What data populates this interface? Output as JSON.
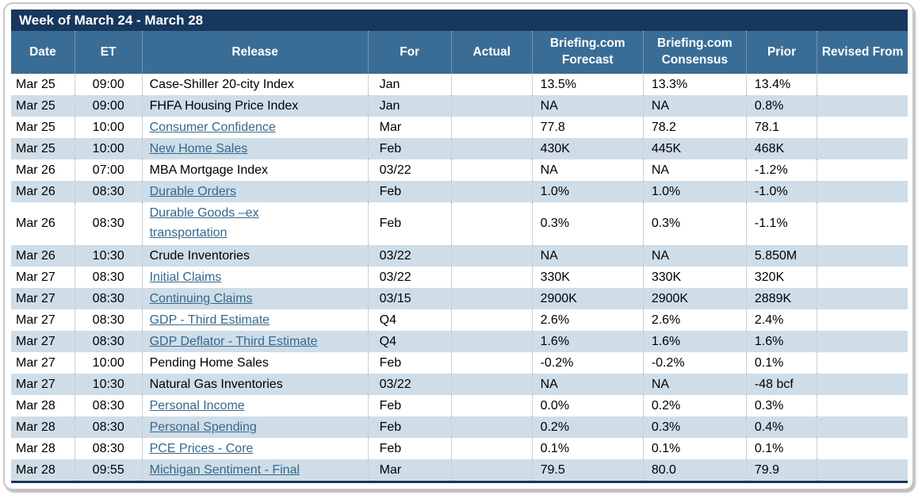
{
  "title": "Week of March 24 - March 28",
  "colors": {
    "title_bar": "#17375d",
    "header": "#3a6d96",
    "stripe_row": "#cfdde8",
    "link": "#36688c"
  },
  "columns": [
    {
      "key": "date",
      "label": "Date"
    },
    {
      "key": "et",
      "label": "ET"
    },
    {
      "key": "release",
      "label": "Release"
    },
    {
      "key": "for",
      "label": "For"
    },
    {
      "key": "actual",
      "label": "Actual"
    },
    {
      "key": "forecast",
      "label": "Briefing.com Forecast"
    },
    {
      "key": "consensus",
      "label": "Briefing.com Consensus"
    },
    {
      "key": "prior",
      "label": "Prior"
    },
    {
      "key": "revised",
      "label": "Revised From"
    }
  ],
  "rows": [
    {
      "date": "Mar 25",
      "et": "09:00",
      "release": "Case-Shiller 20-city Index",
      "link": false,
      "tall": false,
      "for": "Jan",
      "actual": "",
      "forecast": "13.5%",
      "consensus": "13.3%",
      "prior": "13.4%",
      "revised": ""
    },
    {
      "date": "Mar 25",
      "et": "09:00",
      "release": "FHFA Housing Price Index",
      "link": false,
      "tall": false,
      "for": "Jan",
      "actual": "",
      "forecast": "NA",
      "consensus": "NA",
      "prior": "0.8%",
      "revised": ""
    },
    {
      "date": "Mar 25",
      "et": "10:00",
      "release": "Consumer Confidence",
      "link": true,
      "tall": false,
      "for": "Mar",
      "actual": "",
      "forecast": "77.8",
      "consensus": "78.2",
      "prior": "78.1",
      "revised": ""
    },
    {
      "date": "Mar 25",
      "et": "10:00",
      "release": "New Home Sales",
      "link": true,
      "tall": false,
      "for": "Feb",
      "actual": "",
      "forecast": "430K",
      "consensus": "445K",
      "prior": "468K",
      "revised": ""
    },
    {
      "date": "Mar 26",
      "et": "07:00",
      "release": "MBA Mortgage Index",
      "link": false,
      "tall": false,
      "for": "03/22",
      "actual": "",
      "forecast": "NA",
      "consensus": "NA",
      "prior": "-1.2%",
      "revised": ""
    },
    {
      "date": "Mar 26",
      "et": "08:30",
      "release": "Durable Orders",
      "link": true,
      "tall": false,
      "for": "Feb",
      "actual": "",
      "forecast": "1.0%",
      "consensus": "1.0%",
      "prior": "-1.0%",
      "revised": ""
    },
    {
      "date": "Mar 26",
      "et": "08:30",
      "release": "Durable Goods –ex transportation",
      "link": true,
      "tall": true,
      "for": "Feb",
      "actual": "",
      "forecast": "0.3%",
      "consensus": "0.3%",
      "prior": "-1.1%",
      "revised": ""
    },
    {
      "date": "Mar 26",
      "et": "10:30",
      "release": "Crude Inventories",
      "link": false,
      "tall": false,
      "for": "03/22",
      "actual": "",
      "forecast": "NA",
      "consensus": "NA",
      "prior": "5.850M",
      "revised": ""
    },
    {
      "date": "Mar 27",
      "et": "08:30",
      "release": "Initial Claims",
      "link": true,
      "tall": false,
      "for": "03/22",
      "actual": "",
      "forecast": "330K",
      "consensus": "330K",
      "prior": "320K",
      "revised": ""
    },
    {
      "date": "Mar 27",
      "et": "08:30",
      "release": "Continuing Claims",
      "link": true,
      "tall": false,
      "for": "03/15",
      "actual": "",
      "forecast": "2900K",
      "consensus": "2900K",
      "prior": "2889K",
      "revised": ""
    },
    {
      "date": "Mar 27",
      "et": "08:30",
      "release": "GDP - Third Estimate",
      "link": true,
      "tall": false,
      "for": "Q4",
      "actual": "",
      "forecast": "2.6%",
      "consensus": "2.6%",
      "prior": "2.4%",
      "revised": ""
    },
    {
      "date": "Mar 27",
      "et": "08:30",
      "release": "GDP Deflator - Third Estimate",
      "link": true,
      "tall": false,
      "for": "Q4",
      "actual": "",
      "forecast": "1.6%",
      "consensus": "1.6%",
      "prior": "1.6%",
      "revised": ""
    },
    {
      "date": "Mar 27",
      "et": "10:00",
      "release": "Pending Home Sales",
      "link": false,
      "tall": false,
      "for": "Feb",
      "actual": "",
      "forecast": "-0.2%",
      "consensus": "-0.2%",
      "prior": "0.1%",
      "revised": ""
    },
    {
      "date": "Mar 27",
      "et": "10:30",
      "release": "Natural Gas Inventories",
      "link": false,
      "tall": false,
      "for": "03/22",
      "actual": "",
      "forecast": "NA",
      "consensus": "NA",
      "prior": "-48 bcf",
      "revised": ""
    },
    {
      "date": "Mar 28",
      "et": "08:30",
      "release": "Personal Income",
      "link": true,
      "tall": false,
      "for": "Feb",
      "actual": "",
      "forecast": "0.0%",
      "consensus": "0.2%",
      "prior": "0.3%",
      "revised": ""
    },
    {
      "date": "Mar 28",
      "et": "08:30",
      "release": "Personal Spending",
      "link": true,
      "tall": false,
      "for": "Feb",
      "actual": "",
      "forecast": "0.2%",
      "consensus": "0.3%",
      "prior": "0.4%",
      "revised": ""
    },
    {
      "date": "Mar 28",
      "et": "08:30",
      "release": "PCE Prices - Core",
      "link": true,
      "tall": false,
      "for": "Feb",
      "actual": "",
      "forecast": "0.1%",
      "consensus": "0.1%",
      "prior": "0.1%",
      "revised": ""
    },
    {
      "date": "Mar 28",
      "et": "09:55",
      "release": "Michigan Sentiment - Final",
      "link": true,
      "tall": false,
      "for": "Mar",
      "actual": "",
      "forecast": "79.5",
      "consensus": "80.0",
      "prior": "79.9",
      "revised": ""
    }
  ]
}
